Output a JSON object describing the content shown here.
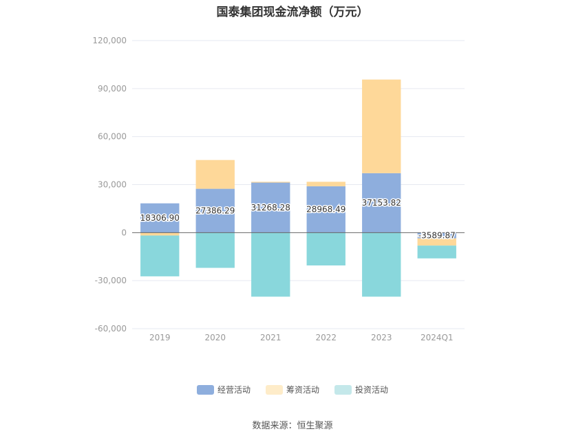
{
  "chart_data": {
    "type": "bar",
    "stacked": true,
    "title": "国泰集团现金流净额（万元）",
    "categories": [
      "2019",
      "2020",
      "2021",
      "2022",
      "2023",
      "2024Q1"
    ],
    "ylim": [
      -60000,
      120000
    ],
    "yticks": [
      120000,
      90000,
      60000,
      30000,
      0,
      -30000,
      -60000
    ],
    "ytick_labels": [
      "120,000",
      "90,000",
      "60,000",
      "30,000",
      "0",
      "-30,000",
      "-60,000"
    ],
    "grid": true,
    "legend_position": "bottom",
    "series": [
      {
        "name": "经营活动",
        "color": "#8eaedd",
        "values": [
          18306.9,
          27386.29,
          31268.28,
          28968.49,
          37153.82,
          -3589.87
        ],
        "labels": [
          "18306.90",
          "27386.29",
          "31268.28",
          "28968.49",
          "37153.82",
          "-3589.87"
        ]
      },
      {
        "name": "筹资活动",
        "color": "#fed899",
        "values": [
          -1800,
          18000,
          500,
          2800,
          58500,
          -4500
        ]
      },
      {
        "name": "投资活动",
        "color": "#89d7dc",
        "values": [
          -25500,
          -22000,
          -40000,
          -20500,
          -40000,
          -8000
        ]
      }
    ],
    "legend_colors": [
      "#8eaedd",
      "#feecc9",
      "#c4e8ea"
    ],
    "source": "数据来源：恒生聚源"
  }
}
